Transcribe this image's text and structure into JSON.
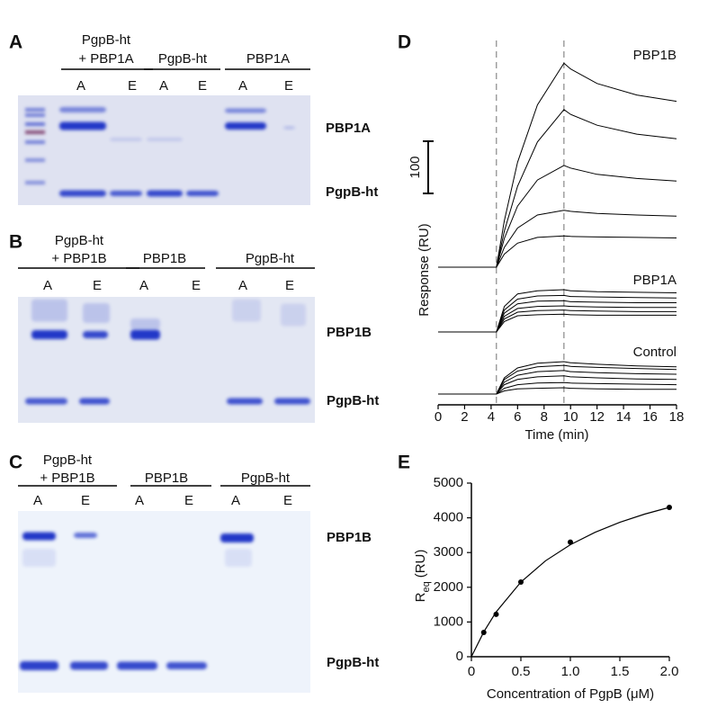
{
  "gels": [
    {
      "label": "A",
      "headers": [
        [
          "PgpB-ht",
          "+ PBP1A"
        ],
        [
          "PgpB-ht"
        ],
        [
          "PBP1A"
        ]
      ],
      "lanes": [
        "A",
        "E",
        "A",
        "E",
        "A",
        "E"
      ],
      "bands": [
        "PBP1A",
        "PgpB-ht"
      ]
    },
    {
      "label": "B",
      "headers": [
        [
          "PgpB-ht",
          "+ PBP1B"
        ],
        [
          "PBP1B"
        ],
        [
          "PgpB-ht"
        ]
      ],
      "lanes": [
        "A",
        "E",
        "A",
        "E",
        "A",
        "E"
      ],
      "bands": [
        "PBP1B",
        "PgpB-ht"
      ]
    },
    {
      "label": "C",
      "headers": [
        [
          "PgpB-ht",
          "+ PBP1B"
        ],
        [
          "PBP1B"
        ],
        [
          "PgpB-ht"
        ]
      ],
      "lanes": [
        "A",
        "E",
        "A",
        "E",
        "A",
        "E"
      ],
      "bands": [
        "PBP1B",
        "PgpB-ht"
      ]
    }
  ],
  "chart_data": [
    {
      "type": "line",
      "label": "D",
      "xlabel": "Time (min)",
      "ylabel": "Response (RU)",
      "scale_bar": 100,
      "color": "#000000",
      "x": [
        0,
        4.4,
        5,
        6,
        7.5,
        9.5,
        10,
        12,
        15,
        18
      ],
      "xlim": [
        0,
        18
      ],
      "xticks": [
        0,
        2,
        4,
        6,
        8,
        10,
        12,
        14,
        16,
        18
      ],
      "panels": [
        {
          "name": "PBP1B",
          "series": [
            {
              "values": [
                0,
                0,
                89,
                201,
                311,
                391,
                380,
                352,
                330,
                318
              ]
            },
            {
              "values": [
                0,
                0,
                69,
                155,
                240,
                302,
                293,
                272,
                255,
                246
              ]
            },
            {
              "values": [
                0,
                0,
                55,
                117,
                167,
                195,
                190,
                178,
                170,
                165
              ]
            },
            {
              "values": [
                0,
                0,
                38,
                75,
                100,
                109,
                107,
                103,
                100,
                98
              ]
            },
            {
              "values": [
                0,
                0,
                25,
                46,
                57,
                60,
                59,
                58,
                57,
                56
              ]
            }
          ]
        },
        {
          "name": "PBP1A",
          "series": [
            {
              "values": [
                0,
                0,
                49,
                73,
                79,
                81,
                79,
                77,
                76,
                75
              ]
            },
            {
              "values": [
                0,
                0,
                42,
                63,
                69,
                70,
                68,
                67,
                66,
                65
              ]
            },
            {
              "values": [
                0,
                0,
                36,
                54,
                59,
                60,
                58,
                57,
                56,
                56
              ]
            },
            {
              "values": [
                0,
                0,
                30,
                45,
                49,
                50,
                49,
                48,
                47,
                47
              ]
            },
            {
              "values": [
                0,
                0,
                25,
                38,
                41,
                42,
                41,
                40,
                39,
                39
              ]
            },
            {
              "values": [
                0,
                0,
                20,
                31,
                33,
                34,
                33,
                32,
                32,
                32
              ]
            }
          ]
        },
        {
          "name": "Control",
          "series": [
            {
              "values": [
                0,
                0,
                31,
                50,
                59,
                62,
                60,
                57,
                54,
                52
              ]
            },
            {
              "values": [
                0,
                0,
                28,
                44,
                52,
                55,
                53,
                51,
                49,
                47
              ]
            },
            {
              "values": [
                0,
                0,
                23,
                36,
                43,
                45,
                43,
                41,
                39,
                38
              ]
            },
            {
              "values": [
                0,
                0,
                18,
                28,
                33,
                35,
                33,
                31,
                29,
                28
              ]
            },
            {
              "values": [
                0,
                0,
                11,
                18,
                21,
                22,
                21,
                20,
                19,
                18
              ]
            },
            {
              "values": [
                0,
                0,
                6,
                10,
                11,
                12,
                11,
                10,
                9,
                9
              ]
            }
          ]
        }
      ]
    },
    {
      "type": "scatter",
      "label": "E",
      "xlabel": "Concentration of PgpB (μM)",
      "ylabel": {
        "main": "R",
        "sub": "eq",
        "unit": "(RU)"
      },
      "color": "#000000",
      "x": [
        0.125,
        0.25,
        0.5,
        1,
        2
      ],
      "values": [
        700,
        1220,
        2150,
        3300,
        4300
      ],
      "fit": {
        "x": [
          0,
          0.125,
          0.25,
          0.5,
          0.75,
          1,
          1.25,
          1.5,
          1.75,
          2
        ],
        "values": [
          0,
          717,
          1290,
          2150,
          2764,
          3225,
          3583,
          3870,
          4105,
          4300
        ]
      },
      "xlim": [
        0,
        2
      ],
      "xticks": [
        0,
        0.5,
        {
          "value": 1,
          "label": "1.0"
        },
        1.5,
        {
          "value": 2,
          "label": "2.0"
        }
      ],
      "ylim": [
        0,
        5000
      ],
      "yticks": [
        0,
        1000,
        2000,
        3000,
        4000,
        5000
      ]
    }
  ]
}
